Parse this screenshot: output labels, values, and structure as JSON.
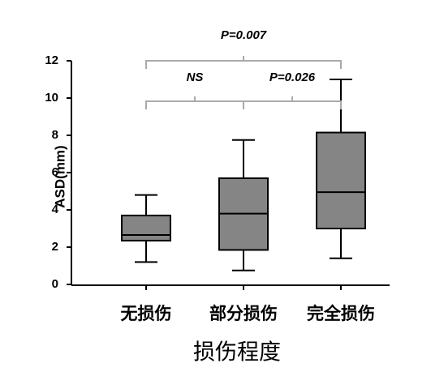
{
  "chart_data": {
    "type": "box",
    "x_label": "损伤程度",
    "y_label": "ASD(mm)",
    "categories": [
      "无损伤",
      "部分损伤",
      "完全损伤"
    ],
    "boxes": [
      {
        "min": 1.2,
        "q1": 2.35,
        "median": 2.65,
        "q3": 3.7,
        "max": 4.8
      },
      {
        "min": 0.75,
        "q1": 1.85,
        "median": 3.8,
        "q3": 5.7,
        "max": 7.75
      },
      {
        "min": 1.4,
        "q1": 3.0,
        "median": 4.95,
        "q3": 8.15,
        "max": 11.0
      }
    ],
    "color": "#858585",
    "ylim": [
      0,
      12
    ],
    "yticks": [
      0,
      2,
      4,
      6,
      8,
      10,
      12
    ],
    "annotations": [
      "P=0.007",
      "NS",
      "P=0.026"
    ]
  }
}
